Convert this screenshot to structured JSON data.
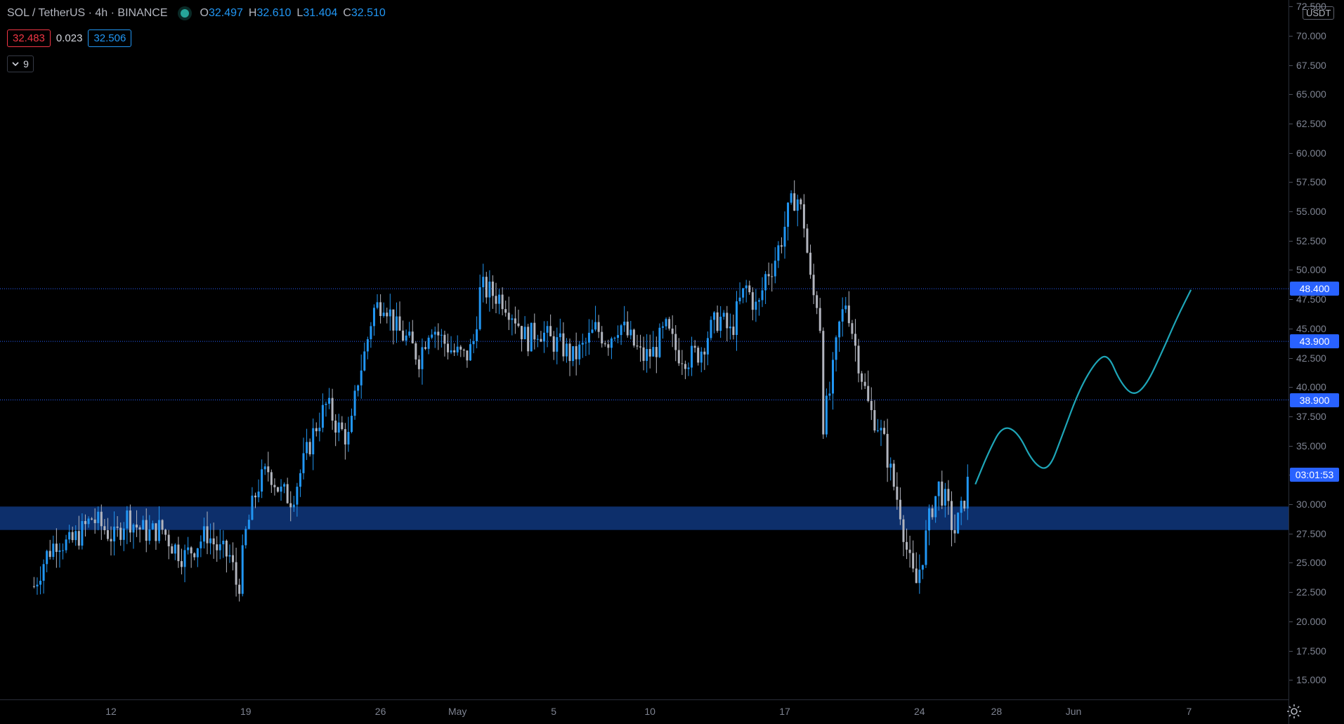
{
  "legend": {
    "symbol": "SOL / TetherUS · 4h · BINANCE",
    "open_label": "O",
    "open": "32.497",
    "high_label": "H",
    "high": "32.610",
    "low_label": "L",
    "low": "31.404",
    "close_label": "C",
    "close": "32.510"
  },
  "quotes": {
    "bid": "32.483",
    "spread": "0.023",
    "ask": "32.506"
  },
  "indicators_toggle": {
    "count": "9",
    "icon": "chevron-down-icon"
  },
  "price_axis": {
    "currency": "USDT",
    "ticks": [
      "72.500",
      "70.000",
      "67.500",
      "65.000",
      "62.500",
      "60.000",
      "57.500",
      "55.000",
      "52.500",
      "50.000",
      "47.500",
      "45.000",
      "42.500",
      "40.000",
      "37.500",
      "35.000",
      "32.500",
      "30.000",
      "27.500",
      "25.000",
      "22.500",
      "20.000",
      "17.500",
      "15.000"
    ],
    "labels": [
      {
        "text": "48.400",
        "price": 48.4,
        "color": "#2962ff"
      },
      {
        "text": "43.900",
        "price": 43.9,
        "color": "#2962ff"
      },
      {
        "text": "38.900",
        "price": 38.9,
        "color": "#2962ff"
      },
      {
        "text": "03:01:53",
        "price": 32.5,
        "color": "#2962ff"
      }
    ],
    "settings_icon": "gear-icon"
  },
  "time_axis": {
    "ticks": [
      {
        "label": "12",
        "day": 12
      },
      {
        "label": "19",
        "day": 19
      },
      {
        "label": "26",
        "day": 26
      },
      {
        "label": "May",
        "day": 30
      },
      {
        "label": "5",
        "day": 35
      },
      {
        "label": "10",
        "day": 40
      },
      {
        "label": "17",
        "day": 47
      },
      {
        "label": "24",
        "day": 54
      },
      {
        "label": "28",
        "day": 58
      },
      {
        "label": "Jun",
        "day": 62
      },
      {
        "label": "7",
        "day": 68
      }
    ]
  },
  "chart_data": {
    "type": "candlestick",
    "symbol": "SOL / TetherUS",
    "interval": "4h",
    "ylim": [
      12.5,
      73.5
    ],
    "horizontal_lines": [
      48.4,
      43.9,
      38.9
    ],
    "support_zone": [
      27.8,
      29.8
    ],
    "colors": {
      "up": "#2196f3",
      "down": "#b2b5be",
      "zone": "#0d2f6b",
      "line": "#2962ff",
      "projection": "#1ea6b8"
    },
    "price_path": [
      [
        8.0,
        23.0
      ],
      [
        8.6,
        25.5
      ],
      [
        9.2,
        27.0
      ],
      [
        9.8,
        26.5
      ],
      [
        10.4,
        27.5
      ],
      [
        11.0,
        28.8
      ],
      [
        11.6,
        28.0
      ],
      [
        12.2,
        27.0
      ],
      [
        12.8,
        29.0
      ],
      [
        13.4,
        28.0
      ],
      [
        14.0,
        27.5
      ],
      [
        14.6,
        28.0
      ],
      [
        15.2,
        26.5
      ],
      [
        15.8,
        25.5
      ],
      [
        16.4,
        26.5
      ],
      [
        17.0,
        27.5
      ],
      [
        17.6,
        26.0
      ],
      [
        18.2,
        25.5
      ],
      [
        18.6,
        22.5
      ],
      [
        19.0,
        27.5
      ],
      [
        19.6,
        31.5
      ],
      [
        20.2,
        33.0
      ],
      [
        20.8,
        31.0
      ],
      [
        21.4,
        30.5
      ],
      [
        22.0,
        33.5
      ],
      [
        22.6,
        36.5
      ],
      [
        23.2,
        38.5
      ],
      [
        23.8,
        36.5
      ],
      [
        24.4,
        35.5
      ],
      [
        24.8,
        40.5
      ],
      [
        25.2,
        43.0
      ],
      [
        25.6,
        46.5
      ],
      [
        26.2,
        47.5
      ],
      [
        26.8,
        45.0
      ],
      [
        27.4,
        44.0
      ],
      [
        28.0,
        42.5
      ],
      [
        28.6,
        45.5
      ],
      [
        29.2,
        44.0
      ],
      [
        29.8,
        43.0
      ],
      [
        30.4,
        42.5
      ],
      [
        30.8,
        43.5
      ],
      [
        31.2,
        48.5
      ],
      [
        31.8,
        48.0
      ],
      [
        32.4,
        47.5
      ],
      [
        33.0,
        46.0
      ],
      [
        33.6,
        44.0
      ],
      [
        34.2,
        45.0
      ],
      [
        34.8,
        44.0
      ],
      [
        35.4,
        43.5
      ],
      [
        36.0,
        42.5
      ],
      [
        36.6,
        43.5
      ],
      [
        37.2,
        45.0
      ],
      [
        37.8,
        44.0
      ],
      [
        38.4,
        45.5
      ],
      [
        39.0,
        44.0
      ],
      [
        39.6,
        42.5
      ],
      [
        40.2,
        43.0
      ],
      [
        40.8,
        45.0
      ],
      [
        41.4,
        43.0
      ],
      [
        42.0,
        42.5
      ],
      [
        42.6,
        43.0
      ],
      [
        43.0,
        44.5
      ],
      [
        43.6,
        46.0
      ],
      [
        44.2,
        44.5
      ],
      [
        44.6,
        47.0
      ],
      [
        45.0,
        48.5
      ],
      [
        45.6,
        46.5
      ],
      [
        46.0,
        49.5
      ],
      [
        46.4,
        50.5
      ],
      [
        46.8,
        52.5
      ],
      [
        47.2,
        55.0
      ],
      [
        47.6,
        56.5
      ],
      [
        48.0,
        54.0
      ],
      [
        48.4,
        48.0
      ],
      [
        48.8,
        47.0
      ],
      [
        49.0,
        37.0
      ],
      [
        49.4,
        40.0
      ],
      [
        49.8,
        45.0
      ],
      [
        50.2,
        47.5
      ],
      [
        50.6,
        44.0
      ],
      [
        51.0,
        41.0
      ],
      [
        51.4,
        38.0
      ],
      [
        51.8,
        37.0
      ],
      [
        52.2,
        35.0
      ],
      [
        52.6,
        32.0
      ],
      [
        53.0,
        29.5
      ],
      [
        53.4,
        25.5
      ],
      [
        53.8,
        23.0
      ],
      [
        54.2,
        26.0
      ],
      [
        54.6,
        29.5
      ],
      [
        55.0,
        31.5
      ],
      [
        55.4,
        30.0
      ],
      [
        55.8,
        27.5
      ],
      [
        56.2,
        29.5
      ],
      [
        56.6,
        32.5
      ]
    ],
    "projection_path": [
      [
        56.9,
        31.7
      ],
      [
        57.6,
        34.5
      ],
      [
        58.3,
        36.7
      ],
      [
        59.1,
        36.2
      ],
      [
        59.9,
        33.5
      ],
      [
        60.7,
        32.8
      ],
      [
        61.4,
        35.8
      ],
      [
        62.3,
        39.8
      ],
      [
        63.2,
        42.3
      ],
      [
        63.8,
        42.8
      ],
      [
        64.4,
        40.5
      ],
      [
        65.1,
        39.2
      ],
      [
        65.8,
        40.2
      ],
      [
        66.6,
        43.0
      ],
      [
        67.4,
        46.0
      ],
      [
        68.1,
        48.3
      ]
    ]
  }
}
